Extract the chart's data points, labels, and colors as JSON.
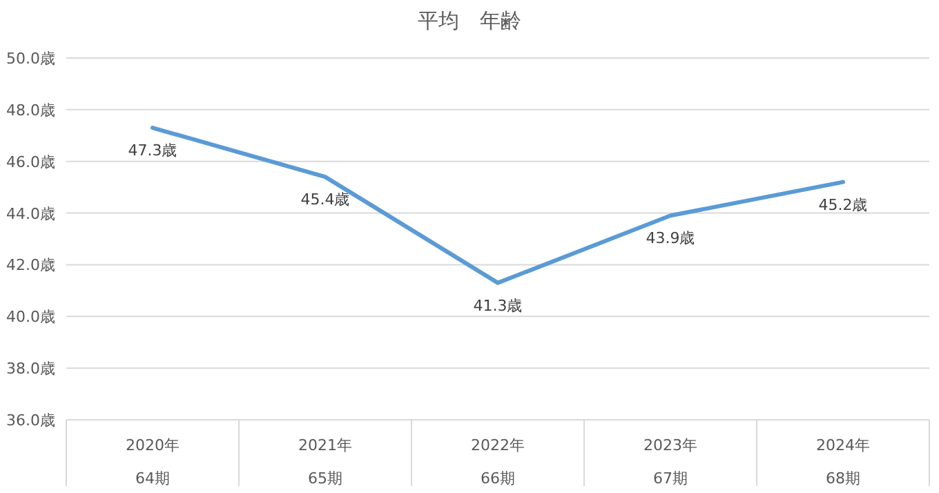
{
  "chart_data": {
    "type": "line",
    "title": "平均　年齢",
    "categories": [
      "2020年\n64期",
      "2021年\n65期",
      "2022年\n66期",
      "2023年\n67期",
      "2024年\n68期"
    ],
    "series": [
      {
        "color": "#5b9bd5",
        "values": [
          47.3,
          45.4,
          41.3,
          43.9,
          45.2
        ],
        "value_labels": [
          "47.3歳",
          "45.4歳",
          "41.3歳",
          "43.9歳",
          "45.2歳"
        ]
      }
    ],
    "ylim": [
      36,
      50
    ],
    "yticks": [
      {
        "value": 36,
        "label": "36.0歳"
      },
      {
        "value": 38,
        "label": "38.0歳"
      },
      {
        "value": 40,
        "label": "40.0歳"
      },
      {
        "value": 42,
        "label": "42.0歳"
      },
      {
        "value": 44,
        "label": "44.0歳"
      },
      {
        "value": 46,
        "label": "46.0歳"
      },
      {
        "value": 48,
        "label": "48.0歳"
      },
      {
        "value": 50,
        "label": "50.0歳"
      }
    ],
    "grid": "y",
    "marker": "none",
    "line_style": "solid"
  }
}
